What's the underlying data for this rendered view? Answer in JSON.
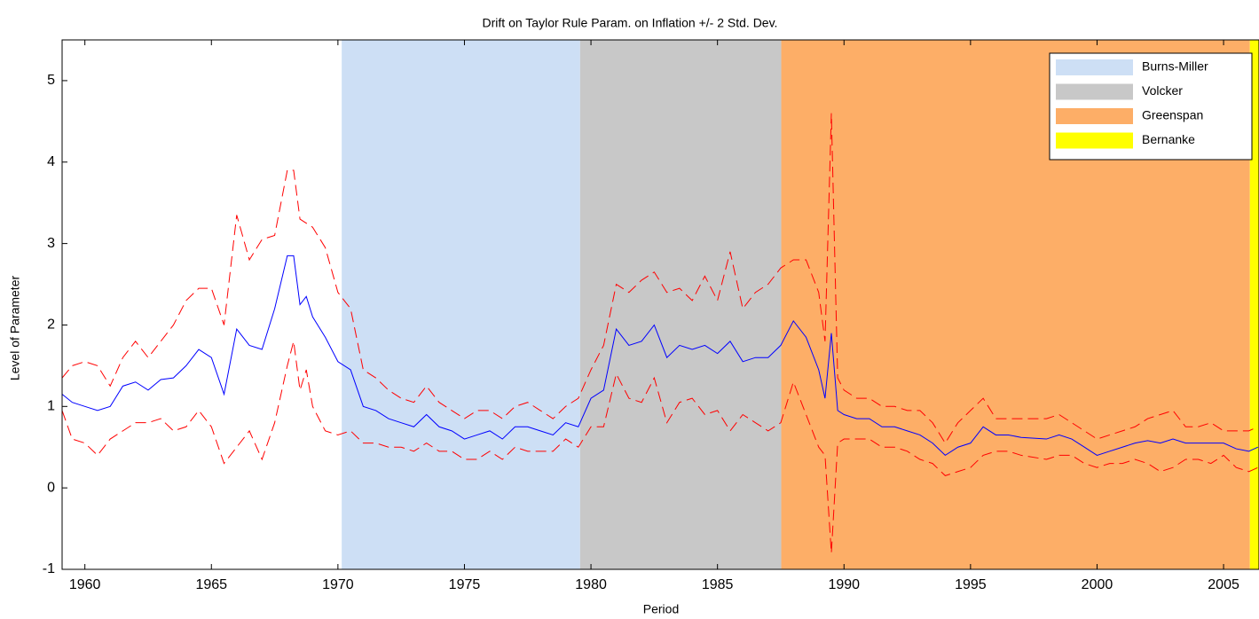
{
  "chart_data": {
    "type": "line",
    "title": "Drift on Taylor Rule Param. on Inflation +/- 2 Std. Dev.",
    "x_label": "Period",
    "y_label": "Level of Parameter",
    "xlim": [
      1959.1,
      2006.4
    ],
    "ylim": [
      -1,
      5.5
    ],
    "xticks": [
      1960,
      1965,
      1970,
      1975,
      1980,
      1985,
      1990,
      1995,
      2000,
      2005
    ],
    "yticks": [
      -1,
      0,
      1,
      2,
      3,
      4,
      5
    ],
    "legend_position": "upper right",
    "regions": [
      {
        "name": "Burns-Miller",
        "start": 1970.15,
        "end": 1979.57,
        "color": "#cddff5"
      },
      {
        "name": "Volcker",
        "start": 1979.57,
        "end": 1987.52,
        "color": "#c8c8c8"
      },
      {
        "name": "Greenspan",
        "start": 1987.52,
        "end": 2006.04,
        "color": "#fdae67"
      },
      {
        "name": "Bernanke",
        "start": 2006.04,
        "end": 2006.4,
        "color": "#ffff00"
      }
    ],
    "x": [
      1959.1,
      1959.5,
      1960,
      1960.5,
      1961,
      1961.5,
      1962,
      1962.5,
      1963,
      1963.5,
      1964,
      1964.5,
      1965,
      1965.5,
      1966,
      1966.5,
      1967,
      1967.5,
      1968,
      1968.25,
      1968.5,
      1968.75,
      1969,
      1969.5,
      1970,
      1970.5,
      1971,
      1971.5,
      1972,
      1972.5,
      1973,
      1973.5,
      1974,
      1974.5,
      1975,
      1975.5,
      1976,
      1976.5,
      1977,
      1977.5,
      1978,
      1978.5,
      1979,
      1979.5,
      1980,
      1980.5,
      1981,
      1981.5,
      1982,
      1982.5,
      1983,
      1983.5,
      1984,
      1984.5,
      1985,
      1985.5,
      1986,
      1986.5,
      1987,
      1987.5,
      1988,
      1988.5,
      1989,
      1989.25,
      1989.5,
      1989.75,
      1990,
      1990.5,
      1991,
      1991.5,
      1992,
      1992.5,
      1993,
      1993.5,
      1994,
      1994.5,
      1995,
      1995.5,
      1996,
      1996.5,
      1997,
      1998,
      1998.5,
      1999,
      1999.5,
      2000,
      2000.5,
      2001,
      2001.5,
      2002,
      2002.5,
      2003,
      2003.5,
      2004,
      2004.5,
      2005,
      2005.5,
      2006,
      2006.36
    ],
    "series": [
      {
        "color": "#0000ff",
        "dashed": false,
        "values": [
          1.15,
          1.05,
          1.0,
          0.95,
          1.0,
          1.25,
          1.3,
          1.2,
          1.33,
          1.35,
          1.5,
          1.7,
          1.6,
          1.15,
          1.95,
          1.75,
          1.7,
          2.2,
          2.85,
          2.85,
          2.25,
          2.35,
          2.1,
          1.85,
          1.55,
          1.45,
          1.0,
          0.95,
          0.85,
          0.8,
          0.75,
          0.9,
          0.75,
          0.7,
          0.6,
          0.65,
          0.7,
          0.6,
          0.75,
          0.75,
          0.7,
          0.65,
          0.8,
          0.75,
          1.1,
          1.2,
          1.95,
          1.75,
          1.8,
          2.0,
          1.6,
          1.75,
          1.7,
          1.75,
          1.65,
          1.8,
          1.55,
          1.6,
          1.6,
          1.75,
          2.05,
          1.85,
          1.45,
          1.1,
          1.9,
          0.95,
          0.9,
          0.85,
          0.85,
          0.75,
          0.75,
          0.7,
          0.65,
          0.55,
          0.4,
          0.5,
          0.55,
          0.75,
          0.65,
          0.65,
          0.62,
          0.6,
          0.65,
          0.6,
          0.5,
          0.4,
          0.45,
          0.5,
          0.55,
          0.58,
          0.55,
          0.6,
          0.55,
          0.55,
          0.55,
          0.55,
          0.48,
          0.45,
          0.5
        ]
      },
      {
        "color": "#ff0000",
        "dashed": true,
        "values": [
          1.35,
          1.5,
          1.55,
          1.5,
          1.25,
          1.6,
          1.8,
          1.6,
          1.8,
          2.0,
          2.3,
          2.45,
          2.45,
          2.0,
          3.35,
          2.8,
          3.05,
          3.1,
          3.9,
          3.9,
          3.3,
          3.25,
          3.2,
          2.95,
          2.4,
          2.2,
          1.45,
          1.35,
          1.2,
          1.1,
          1.05,
          1.25,
          1.05,
          0.95,
          0.85,
          0.95,
          0.95,
          0.85,
          1.0,
          1.05,
          0.95,
          0.85,
          1.0,
          1.1,
          1.45,
          1.75,
          2.5,
          2.4,
          2.55,
          2.65,
          2.4,
          2.45,
          2.3,
          2.6,
          2.3,
          2.9,
          2.2,
          2.4,
          2.5,
          2.7,
          2.8,
          2.8,
          2.4,
          1.8,
          4.6,
          1.35,
          1.2,
          1.1,
          1.1,
          1.0,
          1.0,
          0.95,
          0.95,
          0.8,
          0.55,
          0.8,
          0.95,
          1.1,
          0.85,
          0.85,
          0.85,
          0.85,
          0.9,
          0.8,
          0.7,
          0.6,
          0.65,
          0.7,
          0.75,
          0.85,
          0.9,
          0.95,
          0.75,
          0.75,
          0.8,
          0.7,
          0.7,
          0.7,
          0.75
        ]
      },
      {
        "color": "#ff0000",
        "dashed": true,
        "values": [
          0.95,
          0.6,
          0.55,
          0.4,
          0.6,
          0.7,
          0.8,
          0.8,
          0.85,
          0.7,
          0.75,
          0.95,
          0.75,
          0.3,
          0.5,
          0.7,
          0.35,
          0.8,
          1.5,
          1.8,
          1.2,
          1.45,
          1.0,
          0.7,
          0.65,
          0.7,
          0.55,
          0.55,
          0.5,
          0.5,
          0.45,
          0.55,
          0.45,
          0.45,
          0.35,
          0.35,
          0.45,
          0.35,
          0.5,
          0.45,
          0.45,
          0.45,
          0.6,
          0.5,
          0.75,
          0.75,
          1.4,
          1.1,
          1.05,
          1.35,
          0.8,
          1.05,
          1.1,
          0.9,
          0.95,
          0.7,
          0.9,
          0.8,
          0.7,
          0.8,
          1.3,
          0.9,
          0.5,
          0.4,
          -0.8,
          0.55,
          0.6,
          0.6,
          0.6,
          0.5,
          0.5,
          0.45,
          0.35,
          0.3,
          0.15,
          0.2,
          0.25,
          0.4,
          0.45,
          0.45,
          0.4,
          0.35,
          0.4,
          0.4,
          0.3,
          0.25,
          0.3,
          0.3,
          0.35,
          0.3,
          0.2,
          0.25,
          0.35,
          0.35,
          0.3,
          0.4,
          0.25,
          0.2,
          0.25
        ]
      }
    ]
  }
}
